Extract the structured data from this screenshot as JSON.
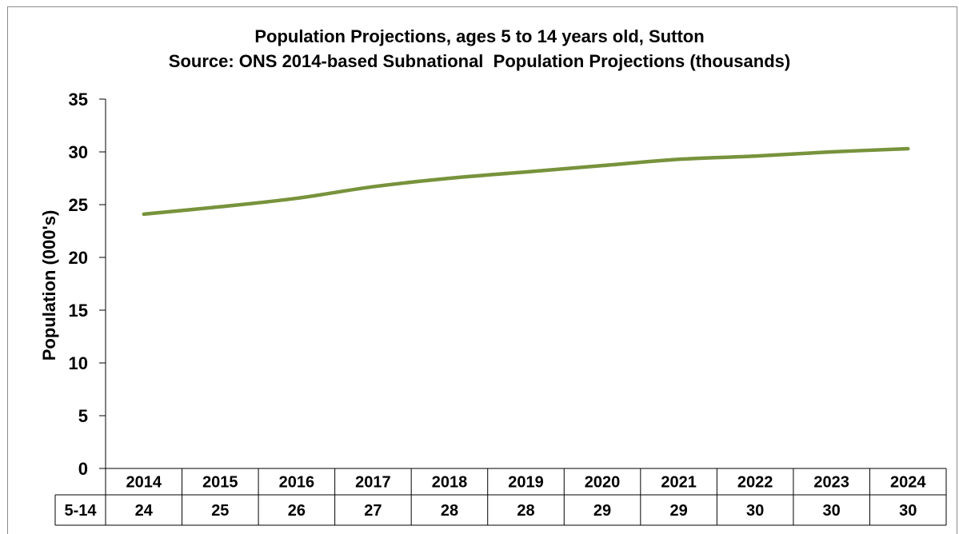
{
  "chart_data": {
    "type": "line",
    "title": "Population Projections, ages 5 to 14 years old, Sutton",
    "subtitle": "Source: ONS 2014-based Subnational  Population Projections (thousands)",
    "ylabel": "Population (000's)",
    "xlabel": "",
    "ylim": [
      0,
      35
    ],
    "yticks": [
      0,
      5,
      10,
      15,
      20,
      25,
      30,
      35
    ],
    "categories": [
      "2014",
      "2015",
      "2016",
      "2017",
      "2018",
      "2019",
      "2020",
      "2021",
      "2022",
      "2023",
      "2024"
    ],
    "series": [
      {
        "name": "5-14",
        "values": [
          24.1,
          24.8,
          25.6,
          26.7,
          27.5,
          28.1,
          28.7,
          29.3,
          29.6,
          30.0,
          30.3
        ],
        "table_values": [
          "24",
          "25",
          "26",
          "27",
          "28",
          "28",
          "29",
          "29",
          "30",
          "30",
          "30"
        ],
        "color": "#77933c"
      }
    ],
    "grid": false,
    "legend": "data table"
  }
}
